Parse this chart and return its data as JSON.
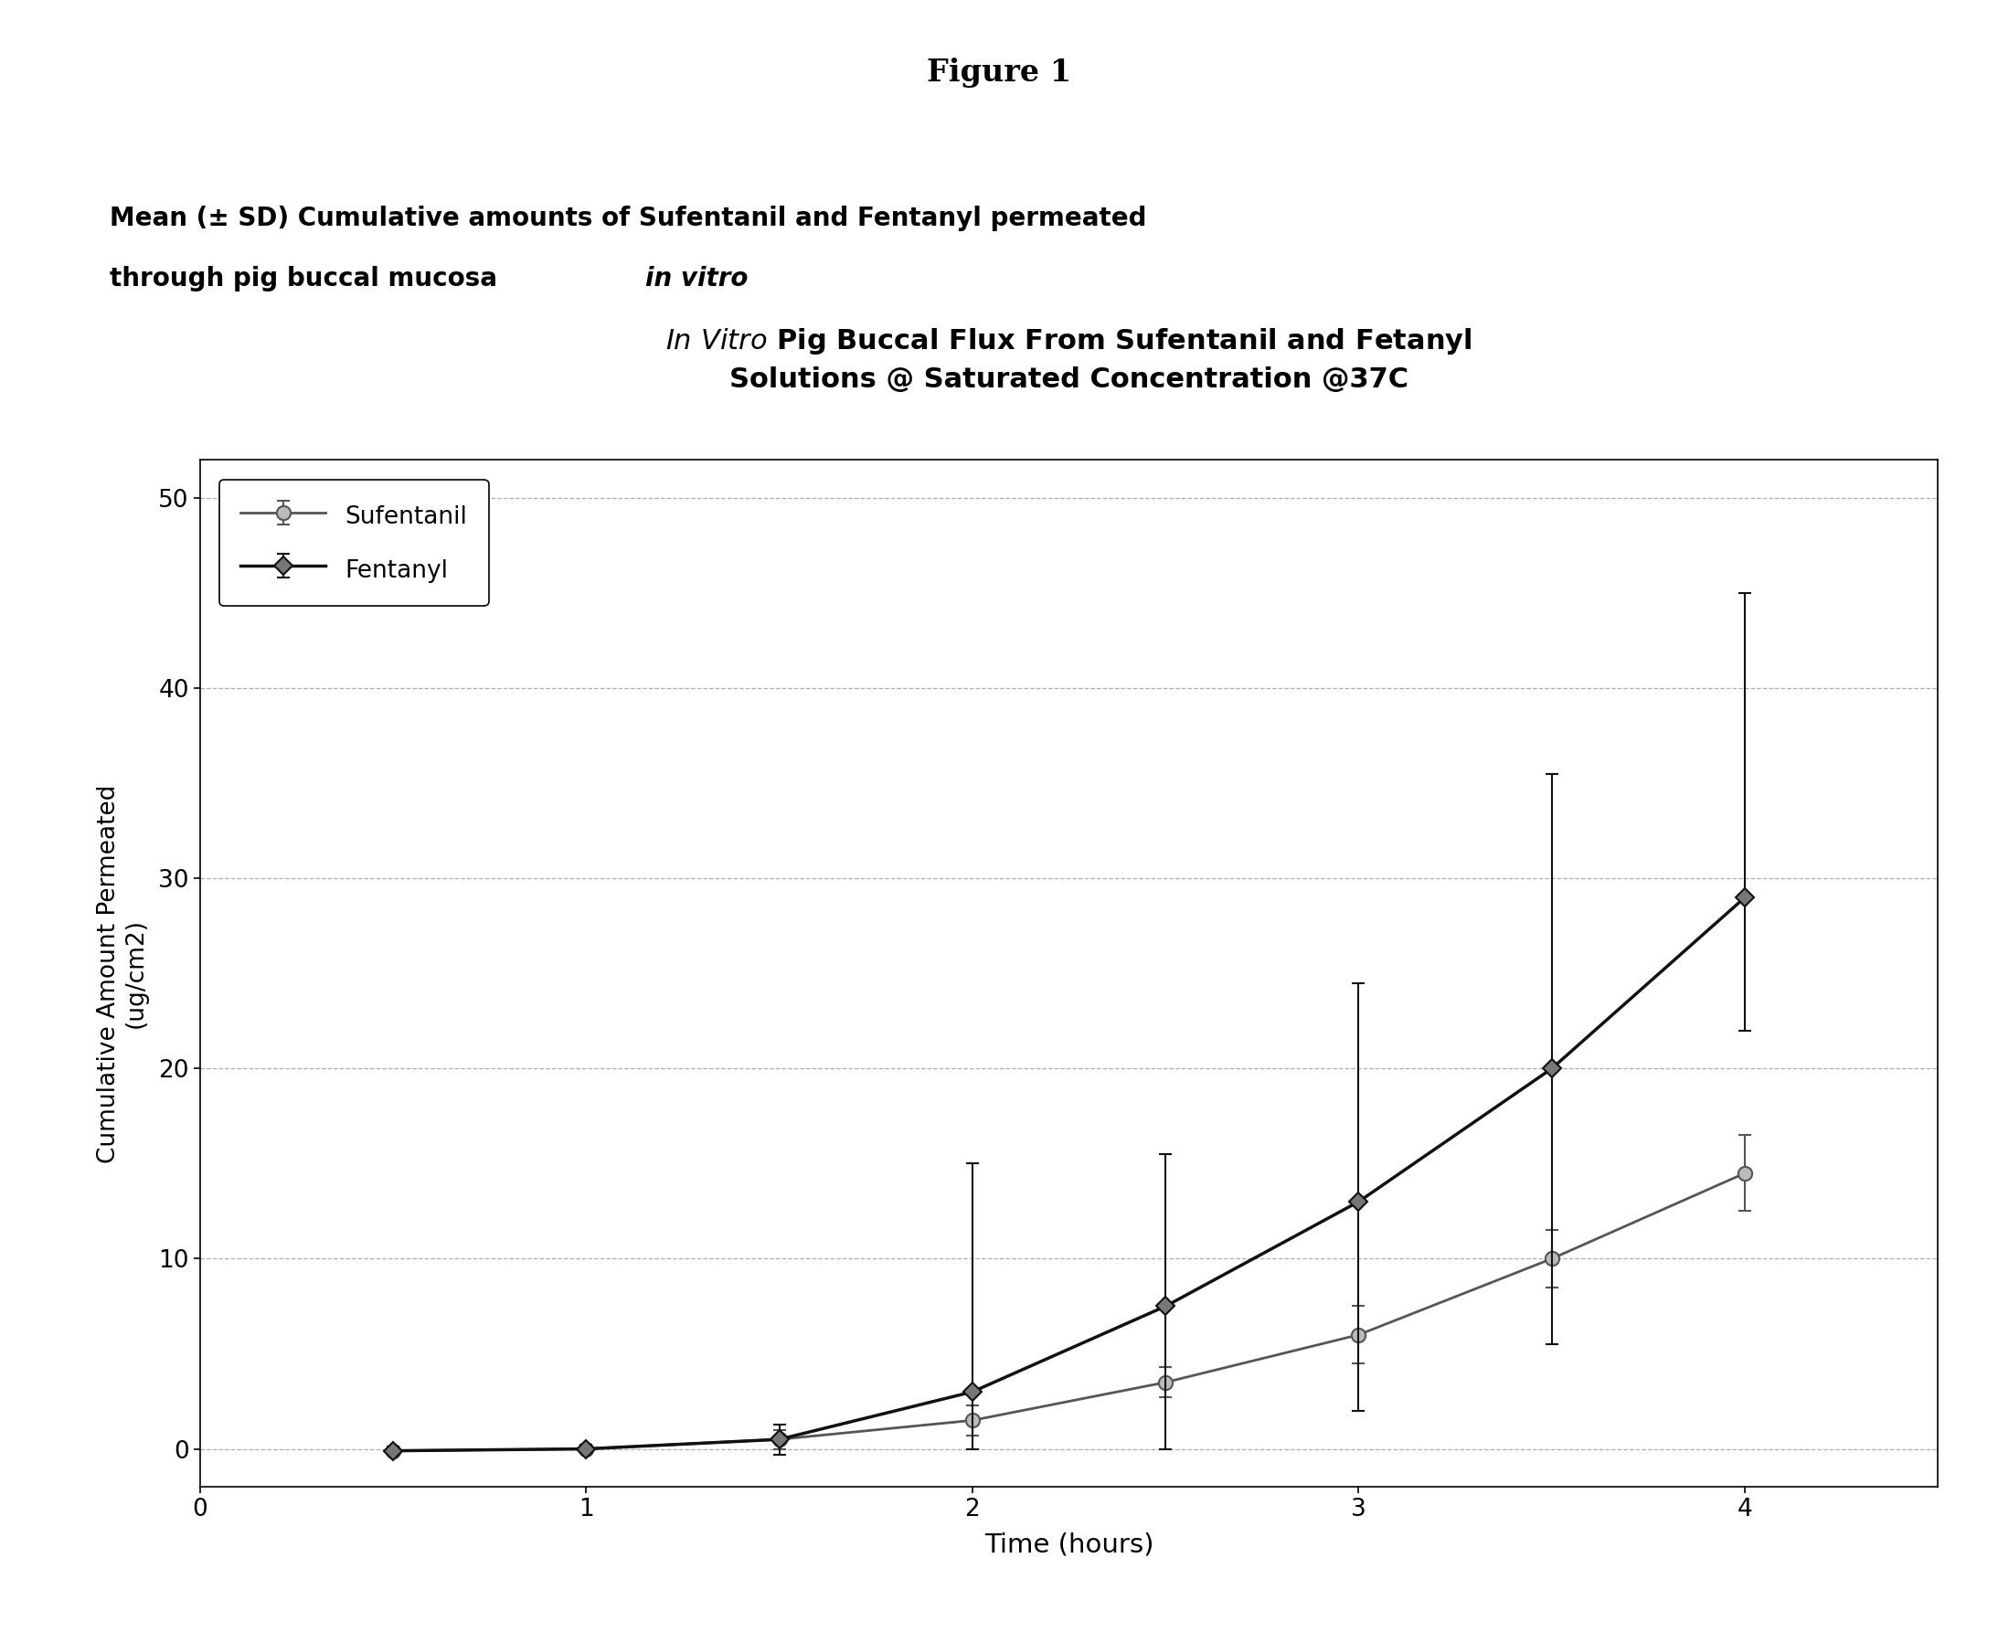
{
  "title_figure": "Figure 1",
  "xlabel": "Time (hours)",
  "ylabel": "Cumulative Amount Permeated\n(ug/cm2)",
  "xlim": [
    0,
    4.5
  ],
  "ylim": [
    -2,
    52
  ],
  "xticks": [
    0,
    1,
    2,
    3,
    4
  ],
  "yticks": [
    0,
    10,
    20,
    30,
    40,
    50
  ],
  "sufentanil_x": [
    0.5,
    1.0,
    1.5,
    2.0,
    2.5,
    3.0,
    3.5,
    4.0
  ],
  "sufentanil_y": [
    -0.1,
    0.0,
    0.5,
    1.5,
    3.5,
    6.0,
    10.0,
    14.5
  ],
  "sufentanil_yerr_lo": [
    0.2,
    0.2,
    0.5,
    0.8,
    0.8,
    1.5,
    1.5,
    2.0
  ],
  "sufentanil_yerr_hi": [
    0.2,
    0.2,
    0.5,
    0.8,
    0.8,
    1.5,
    1.5,
    2.0
  ],
  "fentanyl_x": [
    0.5,
    1.0,
    1.5,
    2.0,
    2.5,
    3.0,
    3.5,
    4.0
  ],
  "fentanyl_y": [
    -0.1,
    0.0,
    0.5,
    3.0,
    7.5,
    13.0,
    20.0,
    29.0
  ],
  "fentanyl_yerr_lo": [
    0.2,
    0.2,
    0.8,
    3.0,
    7.5,
    11.0,
    14.5,
    7.0
  ],
  "fentanyl_yerr_hi": [
    0.2,
    0.2,
    0.8,
    12.0,
    8.0,
    11.5,
    15.5,
    16.0
  ],
  "sufentanil_color": "#555555",
  "fentanyl_color": "#111111",
  "background_color": "#ffffff",
  "plot_bg_color": "#ffffff",
  "grid_color": "#999999",
  "legend_sufentanil": "Sufentanil",
  "legend_fentanyl": "Fentanyl",
  "subtitle_line1": "Mean (± SD) Cumulative amounts of Sufentanil and Fentanyl permeated",
  "subtitle_line2_normal": "through pig buccal mucosa ",
  "subtitle_line2_italic": "in vitro",
  "chart_title_italic": "In Vitro",
  "chart_title_normal": " Pig Buccal Flux From Sufentanil and Fetanyl\nSolutions @ Saturated Concentration @37C"
}
